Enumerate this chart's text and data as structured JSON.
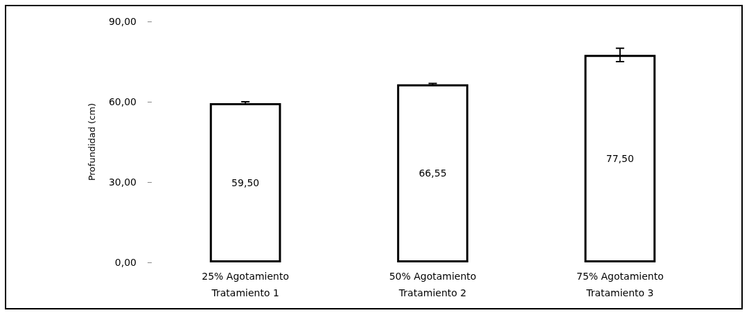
{
  "chart_data": {
    "type": "bar",
    "ylabel": "Profundidad (cm)",
    "categories": [
      "25% Agotamiento\nTratamiento 1",
      "50% Agotamiento\nTratamiento 2",
      "75% Agotamiento\nTratamiento 3"
    ],
    "values": [
      59.5,
      66.55,
      77.5
    ],
    "color": "#ffffff",
    "errors": [
      0.5,
      0.3,
      2.5
    ],
    "value_labels": [
      "59,50",
      "66,55",
      "77,50"
    ],
    "ylim": [
      0,
      90
    ],
    "yticks": [
      {
        "value": 0,
        "label": "0,00"
      },
      {
        "value": 30,
        "label": "30,00"
      },
      {
        "value": 60,
        "label": "60,00"
      },
      {
        "value": 90,
        "label": "90,00"
      }
    ],
    "grid": false
  }
}
